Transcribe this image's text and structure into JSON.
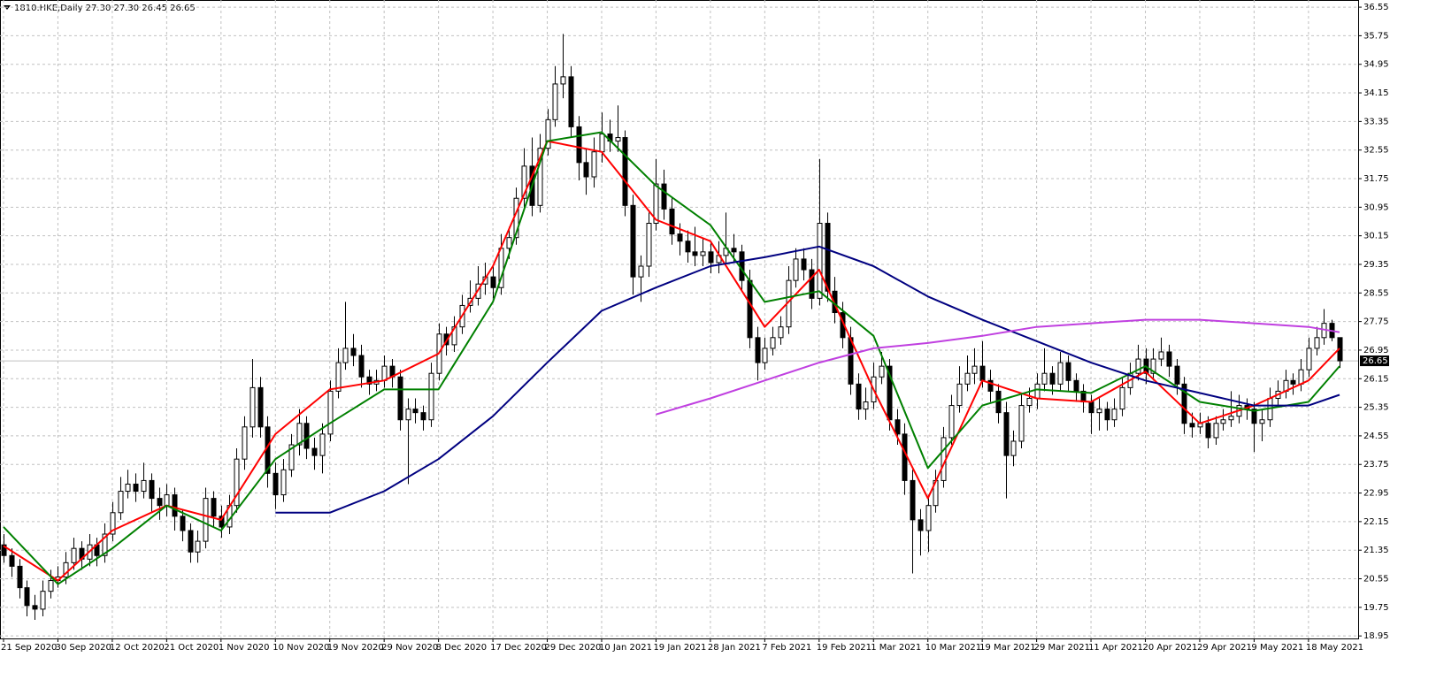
{
  "chart_data": {
    "type": "candlestick",
    "header": "1810.HKE,Daily  27.30 27.30 26.45 26.65",
    "grid": true,
    "up_color": "#ffffff",
    "down_color": "#000000",
    "last_price": 26.65,
    "ylim": [
      18.88,
      36.75
    ],
    "yticks": [
      18.95,
      19.75,
      20.55,
      21.35,
      22.15,
      22.95,
      23.75,
      24.55,
      25.35,
      26.15,
      26.95,
      27.75,
      28.55,
      29.35,
      30.15,
      30.95,
      31.75,
      32.55,
      33.35,
      34.15,
      34.95,
      35.75,
      36.55
    ],
    "xlim": [
      0,
      174
    ],
    "xticks": [
      {
        "value": 0,
        "label": "21 Sep 2020"
      },
      {
        "value": 7,
        "label": "30 Sep 2020"
      },
      {
        "value": 14,
        "label": "12 Oct 2020"
      },
      {
        "value": 21,
        "label": "21 Oct 2020"
      },
      {
        "value": 28,
        "label": "1 Nov 2020"
      },
      {
        "value": 35,
        "label": "10 Nov 2020"
      },
      {
        "value": 42,
        "label": "19 Nov 2020"
      },
      {
        "value": 49,
        "label": "29 Nov 2020"
      },
      {
        "value": 56,
        "label": "8 Dec 2020"
      },
      {
        "value": 63,
        "label": "17 Dec 2020"
      },
      {
        "value": 70,
        "label": "29 Dec 2020"
      },
      {
        "value": 77,
        "label": "10 Jan 2021"
      },
      {
        "value": 84,
        "label": "19 Jan 2021"
      },
      {
        "value": 91,
        "label": "28 Jan 2021"
      },
      {
        "value": 98,
        "label": "7 Feb 2021"
      },
      {
        "value": 105,
        "label": "19 Feb 2021"
      },
      {
        "value": 112,
        "label": "1 Mar 2021"
      },
      {
        "value": 119,
        "label": "10 Mar 2021"
      },
      {
        "value": 126,
        "label": "19 Mar 2021"
      },
      {
        "value": 133,
        "label": "29 Mar 2021"
      },
      {
        "value": 140,
        "label": "11 Apr 2021"
      },
      {
        "value": 147,
        "label": "20 Apr 2021"
      },
      {
        "value": 154,
        "label": "29 Apr 2021"
      },
      {
        "value": 161,
        "label": "9 May 2021"
      },
      {
        "value": 168,
        "label": "18 May 2021"
      }
    ],
    "ohlc": [
      [
        21.5,
        21.8,
        21.0,
        21.2
      ],
      [
        21.2,
        21.4,
        20.6,
        20.9
      ],
      [
        20.9,
        21.1,
        20.0,
        20.3
      ],
      [
        20.3,
        20.5,
        19.5,
        19.8
      ],
      [
        19.8,
        20.1,
        19.4,
        19.7
      ],
      [
        19.7,
        20.5,
        19.5,
        20.2
      ],
      [
        20.2,
        20.8,
        20.0,
        20.5
      ],
      [
        20.5,
        20.9,
        20.3,
        20.6
      ],
      [
        20.6,
        21.3,
        20.4,
        21.0
      ],
      [
        21.0,
        21.7,
        20.8,
        21.4
      ],
      [
        21.4,
        21.6,
        20.8,
        21.1
      ],
      [
        21.1,
        21.8,
        20.9,
        21.5
      ],
      [
        21.5,
        21.7,
        20.9,
        21.2
      ],
      [
        21.2,
        22.1,
        21.0,
        21.8
      ],
      [
        21.8,
        22.7,
        21.6,
        22.4
      ],
      [
        22.4,
        23.4,
        22.2,
        23.0
      ],
      [
        23.0,
        23.6,
        22.8,
        23.2
      ],
      [
        23.2,
        23.5,
        22.7,
        23.0
      ],
      [
        23.0,
        23.8,
        22.8,
        23.3
      ],
      [
        23.3,
        23.5,
        22.4,
        22.8
      ],
      [
        22.8,
        23.1,
        22.2,
        22.6
      ],
      [
        22.6,
        23.2,
        22.3,
        22.9
      ],
      [
        22.9,
        23.1,
        21.9,
        22.3
      ],
      [
        22.3,
        22.5,
        21.6,
        21.9
      ],
      [
        21.9,
        22.1,
        21.0,
        21.3
      ],
      [
        21.3,
        21.9,
        21.0,
        21.6
      ],
      [
        21.6,
        23.1,
        21.4,
        22.8
      ],
      [
        22.8,
        23.0,
        22.0,
        22.3
      ],
      [
        22.3,
        22.6,
        21.7,
        22.0
      ],
      [
        22.0,
        22.9,
        21.8,
        22.6
      ],
      [
        22.6,
        24.2,
        22.4,
        23.9
      ],
      [
        23.9,
        25.1,
        23.6,
        24.8
      ],
      [
        24.8,
        26.7,
        24.5,
        25.9
      ],
      [
        25.9,
        26.2,
        24.5,
        24.8
      ],
      [
        24.8,
        25.1,
        23.1,
        23.5
      ],
      [
        23.5,
        23.8,
        22.5,
        22.9
      ],
      [
        22.9,
        23.9,
        22.7,
        23.6
      ],
      [
        23.6,
        24.6,
        23.4,
        24.3
      ],
      [
        24.3,
        25.3,
        24.0,
        24.9
      ],
      [
        24.9,
        25.1,
        23.9,
        24.2
      ],
      [
        24.2,
        24.5,
        23.6,
        24.0
      ],
      [
        24.0,
        24.9,
        23.5,
        24.6
      ],
      [
        24.6,
        26.1,
        24.4,
        25.8
      ],
      [
        25.8,
        27.0,
        25.6,
        26.6
      ],
      [
        26.6,
        28.3,
        26.4,
        27.0
      ],
      [
        27.0,
        27.4,
        26.5,
        26.8
      ],
      [
        26.8,
        27.1,
        25.9,
        26.2
      ],
      [
        26.2,
        26.4,
        25.7,
        26.0
      ],
      [
        26.0,
        26.4,
        25.8,
        26.1
      ],
      [
        26.1,
        26.8,
        25.9,
        26.5
      ],
      [
        26.5,
        26.7,
        25.9,
        26.2
      ],
      [
        26.2,
        26.4,
        24.7,
        25.0
      ],
      [
        25.0,
        25.6,
        23.2,
        25.3
      ],
      [
        25.3,
        25.6,
        24.9,
        25.2
      ],
      [
        25.2,
        25.4,
        24.7,
        25.0
      ],
      [
        25.0,
        26.6,
        24.8,
        26.3
      ],
      [
        26.3,
        27.7,
        26.1,
        27.4
      ],
      [
        27.4,
        27.6,
        26.8,
        27.1
      ],
      [
        27.1,
        27.9,
        26.9,
        27.6
      ],
      [
        27.6,
        28.5,
        27.4,
        28.2
      ],
      [
        28.2,
        28.9,
        28.0,
        28.4
      ],
      [
        28.4,
        29.3,
        28.2,
        28.8
      ],
      [
        28.8,
        29.4,
        28.5,
        29.0
      ],
      [
        29.0,
        29.3,
        28.4,
        28.7
      ],
      [
        28.7,
        30.2,
        28.5,
        29.8
      ],
      [
        29.8,
        30.4,
        29.5,
        30.1
      ],
      [
        30.1,
        31.5,
        29.9,
        31.2
      ],
      [
        31.2,
        32.6,
        30.9,
        32.1
      ],
      [
        32.1,
        32.9,
        30.7,
        31.0
      ],
      [
        31.0,
        33.0,
        30.8,
        32.6
      ],
      [
        32.6,
        33.7,
        32.4,
        33.4
      ],
      [
        33.4,
        34.9,
        33.2,
        34.4
      ],
      [
        34.4,
        35.8,
        34.0,
        34.6
      ],
      [
        34.6,
        34.9,
        32.9,
        33.2
      ],
      [
        33.2,
        33.5,
        31.7,
        32.2
      ],
      [
        32.2,
        32.6,
        31.3,
        31.8
      ],
      [
        31.8,
        32.9,
        31.5,
        32.5
      ],
      [
        32.5,
        33.6,
        32.2,
        33.0
      ],
      [
        33.0,
        33.4,
        32.5,
        32.8
      ],
      [
        32.8,
        33.8,
        32.5,
        32.9
      ],
      [
        32.9,
        33.1,
        30.7,
        31.0
      ],
      [
        31.0,
        31.3,
        28.5,
        29.0
      ],
      [
        29.0,
        29.6,
        28.3,
        29.3
      ],
      [
        29.3,
        30.8,
        29.0,
        30.5
      ],
      [
        30.5,
        32.3,
        30.3,
        31.6
      ],
      [
        31.6,
        32.0,
        30.6,
        30.9
      ],
      [
        30.9,
        31.2,
        29.9,
        30.2
      ],
      [
        30.2,
        30.5,
        29.6,
        30.0
      ],
      [
        30.0,
        30.3,
        29.4,
        29.7
      ],
      [
        29.7,
        30.4,
        29.3,
        29.6
      ],
      [
        29.6,
        30.1,
        29.3,
        29.7
      ],
      [
        29.7,
        30.0,
        29.1,
        29.4
      ],
      [
        29.4,
        30.0,
        29.1,
        29.6
      ],
      [
        29.6,
        30.8,
        29.4,
        29.8
      ],
      [
        29.8,
        30.2,
        29.4,
        29.7
      ],
      [
        29.7,
        29.9,
        28.6,
        28.9
      ],
      [
        28.9,
        29.2,
        27.0,
        27.3
      ],
      [
        27.3,
        27.6,
        26.1,
        26.6
      ],
      [
        26.6,
        27.3,
        26.4,
        27.0
      ],
      [
        27.0,
        27.6,
        26.8,
        27.3
      ],
      [
        27.3,
        27.9,
        27.1,
        27.6
      ],
      [
        27.6,
        29.3,
        27.4,
        28.9
      ],
      [
        28.9,
        29.8,
        28.7,
        29.5
      ],
      [
        29.5,
        29.8,
        28.9,
        29.2
      ],
      [
        29.2,
        29.5,
        28.1,
        28.4
      ],
      [
        28.4,
        32.3,
        28.2,
        30.5
      ],
      [
        30.5,
        30.8,
        28.3,
        28.6
      ],
      [
        28.6,
        29.0,
        27.7,
        28.0
      ],
      [
        28.0,
        28.3,
        27.0,
        27.3
      ],
      [
        27.3,
        27.6,
        25.7,
        26.0
      ],
      [
        26.0,
        26.3,
        25.0,
        25.3
      ],
      [
        25.3,
        25.9,
        25.0,
        25.5
      ],
      [
        25.5,
        26.6,
        25.3,
        26.2
      ],
      [
        26.2,
        26.9,
        26.0,
        26.5
      ],
      [
        26.5,
        26.7,
        24.7,
        25.0
      ],
      [
        25.0,
        25.3,
        24.3,
        24.6
      ],
      [
        24.6,
        24.9,
        22.9,
        23.3
      ],
      [
        23.3,
        23.6,
        20.7,
        22.2
      ],
      [
        22.2,
        22.5,
        21.2,
        21.9
      ],
      [
        21.9,
        22.9,
        21.3,
        22.6
      ],
      [
        22.6,
        23.6,
        22.4,
        23.3
      ],
      [
        23.3,
        24.8,
        23.1,
        24.5
      ],
      [
        24.5,
        25.7,
        24.3,
        25.4
      ],
      [
        25.4,
        26.5,
        25.2,
        26.0
      ],
      [
        26.0,
        26.8,
        25.8,
        26.3
      ],
      [
        26.3,
        27.0,
        26.0,
        26.5
      ],
      [
        26.5,
        27.2,
        25.9,
        26.1
      ],
      [
        26.1,
        26.4,
        25.5,
        25.8
      ],
      [
        25.8,
        26.0,
        24.9,
        25.2
      ],
      [
        25.2,
        25.5,
        22.8,
        24.0
      ],
      [
        24.0,
        24.7,
        23.7,
        24.4
      ],
      [
        24.4,
        25.7,
        24.2,
        25.4
      ],
      [
        25.4,
        25.9,
        25.2,
        25.6
      ],
      [
        25.6,
        26.3,
        25.3,
        26.0
      ],
      [
        26.0,
        27.0,
        25.8,
        26.3
      ],
      [
        26.3,
        26.5,
        25.7,
        26.0
      ],
      [
        26.0,
        26.9,
        25.8,
        26.6
      ],
      [
        26.6,
        26.8,
        25.8,
        26.1
      ],
      [
        26.1,
        26.3,
        25.5,
        25.8
      ],
      [
        25.8,
        26.0,
        25.2,
        25.5
      ],
      [
        25.5,
        25.7,
        24.6,
        25.2
      ],
      [
        25.2,
        25.6,
        24.7,
        25.3
      ],
      [
        25.3,
        25.5,
        24.7,
        25.0
      ],
      [
        25.0,
        25.6,
        24.8,
        25.3
      ],
      [
        25.3,
        26.2,
        25.1,
        25.9
      ],
      [
        25.9,
        26.6,
        25.7,
        26.3
      ],
      [
        26.3,
        27.1,
        26.1,
        26.7
      ],
      [
        26.7,
        27.0,
        26.0,
        26.3
      ],
      [
        26.3,
        27.0,
        26.1,
        26.7
      ],
      [
        26.7,
        27.3,
        26.5,
        26.9
      ],
      [
        26.9,
        27.1,
        26.2,
        26.5
      ],
      [
        26.5,
        26.7,
        25.7,
        26.0
      ],
      [
        26.0,
        26.2,
        24.6,
        24.9
      ],
      [
        24.9,
        25.2,
        24.5,
        24.8
      ],
      [
        24.8,
        25.2,
        24.6,
        24.9
      ],
      [
        24.9,
        25.1,
        24.2,
        24.5
      ],
      [
        24.5,
        25.1,
        24.3,
        24.9
      ],
      [
        24.9,
        25.3,
        24.7,
        25.0
      ],
      [
        25.0,
        25.8,
        24.8,
        25.1
      ],
      [
        25.1,
        25.7,
        24.9,
        25.4
      ],
      [
        25.4,
        25.6,
        25.0,
        25.3
      ],
      [
        25.3,
        25.5,
        24.1,
        24.9
      ],
      [
        24.9,
        25.3,
        24.4,
        25.0
      ],
      [
        25.0,
        25.9,
        24.8,
        25.6
      ],
      [
        25.6,
        26.1,
        25.4,
        25.8
      ],
      [
        25.8,
        26.4,
        25.6,
        26.1
      ],
      [
        26.1,
        26.3,
        25.7,
        26.0
      ],
      [
        26.0,
        26.7,
        25.8,
        26.4
      ],
      [
        26.4,
        27.3,
        26.2,
        27.0
      ],
      [
        27.0,
        27.6,
        26.8,
        27.3
      ],
      [
        27.3,
        28.1,
        27.1,
        27.7
      ],
      [
        27.7,
        27.8,
        27.2,
        27.3
      ],
      [
        27.3,
        27.3,
        26.45,
        26.65
      ]
    ],
    "lines": {
      "x": [
        0,
        7,
        14,
        21,
        28,
        35,
        42,
        49,
        56,
        63,
        70,
        77,
        84,
        91,
        98,
        105,
        112,
        119,
        126,
        133,
        140,
        147,
        154,
        161,
        168,
        172
      ],
      "series": [
        {
          "color": "#ff0000",
          "values": [
            21.47,
            20.5,
            21.9,
            22.6,
            22.2,
            24.6,
            25.85,
            26.1,
            26.85,
            29.3,
            32.8,
            32.5,
            30.6,
            30.0,
            27.6,
            29.2,
            25.85,
            22.8,
            26.1,
            25.6,
            25.5,
            26.35,
            24.9,
            25.4,
            26.1,
            27.0
          ]
        },
        {
          "color": "#008000",
          "values": [
            22.0,
            20.4,
            21.4,
            22.6,
            21.9,
            23.9,
            24.9,
            25.85,
            25.85,
            28.3,
            32.8,
            33.05,
            31.55,
            30.45,
            28.3,
            28.6,
            27.35,
            23.65,
            25.4,
            25.85,
            25.75,
            26.5,
            25.5,
            25.25,
            25.5,
            26.5
          ]
        },
        {
          "color": "#000080",
          "values": [
            null,
            null,
            null,
            null,
            null,
            22.4,
            22.4,
            23.0,
            23.9,
            25.1,
            26.6,
            28.05,
            28.7,
            29.3,
            29.55,
            29.85,
            29.3,
            28.45,
            27.8,
            27.2,
            26.6,
            26.1,
            25.75,
            25.4,
            25.4,
            25.7
          ]
        },
        {
          "color": "#c040e0",
          "values": [
            null,
            null,
            null,
            null,
            null,
            null,
            null,
            null,
            null,
            null,
            null,
            null,
            25.15,
            25.6,
            26.1,
            26.6,
            27.0,
            27.15,
            27.35,
            27.6,
            27.7,
            27.8,
            27.8,
            27.7,
            27.6,
            27.45
          ]
        }
      ]
    }
  }
}
